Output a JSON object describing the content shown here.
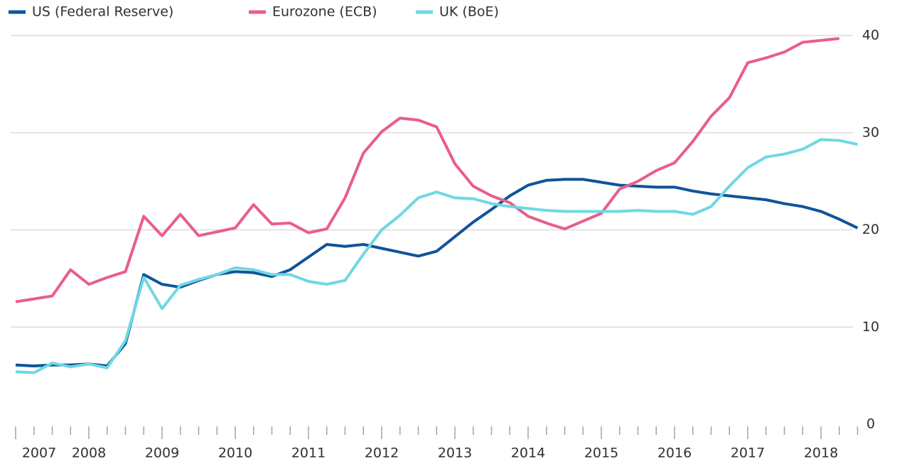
{
  "chart_data": {
    "type": "line",
    "categories": [
      "2007",
      null,
      null,
      null,
      "2008",
      null,
      null,
      null,
      "2009",
      null,
      null,
      null,
      "2010",
      null,
      null,
      null,
      "2011",
      null,
      null,
      null,
      "2012",
      null,
      null,
      null,
      "2013",
      null,
      null,
      null,
      "2014",
      null,
      null,
      null,
      "2015",
      null,
      null,
      null,
      "2016",
      null,
      null,
      null,
      "2017",
      null,
      null,
      null,
      "2018",
      null,
      null
    ],
    "series": [
      {
        "name": "US (Federal Reserve)",
        "color": "#0f5499",
        "values": [
          6.1,
          6.0,
          6.1,
          6.1,
          6.2,
          6.0,
          8.3,
          15.4,
          14.4,
          14.1,
          14.8,
          15.4,
          15.7,
          15.6,
          15.2,
          15.9,
          17.2,
          18.5,
          18.3,
          18.5,
          18.1,
          17.7,
          17.3,
          17.8,
          19.3,
          20.8,
          22.1,
          23.5,
          24.6,
          25.1,
          25.2,
          25.2,
          24.9,
          24.6,
          24.5,
          24.4,
          24.4,
          24.0,
          23.7,
          23.5,
          23.3,
          23.1,
          22.7,
          22.4,
          21.9,
          21.1,
          20.2
        ]
      },
      {
        "name": "Eurozone (ECB)",
        "color": "#e95d8c",
        "values": [
          12.6,
          12.9,
          13.2,
          15.9,
          14.4,
          15.1,
          15.7,
          21.4,
          19.4,
          21.6,
          19.4,
          19.8,
          20.2,
          22.6,
          20.6,
          20.7,
          19.7,
          20.1,
          23.3,
          27.9,
          30.1,
          31.5,
          31.3,
          30.6,
          26.8,
          24.5,
          23.5,
          22.8,
          21.4,
          20.7,
          20.1,
          20.9,
          21.7,
          24.2,
          25.0,
          26.1,
          26.9,
          29.1,
          31.7,
          33.6,
          37.2,
          37.7,
          38.3,
          39.3,
          39.5,
          39.7,
          null
        ]
      },
      {
        "name": "UK (BoE)",
        "color": "#6fd8e4",
        "values": [
          5.4,
          5.3,
          6.3,
          5.9,
          6.2,
          5.8,
          8.6,
          15.1,
          11.9,
          14.3,
          14.9,
          15.4,
          16.1,
          15.9,
          15.4,
          15.4,
          14.7,
          14.4,
          14.8,
          17.5,
          20.0,
          21.5,
          23.3,
          23.9,
          23.3,
          23.2,
          22.7,
          22.4,
          22.2,
          22.0,
          21.9,
          21.9,
          21.9,
          21.9,
          22.0,
          21.9,
          21.9,
          21.6,
          22.4,
          24.5,
          26.4,
          27.5,
          27.8,
          28.3,
          29.3,
          29.2,
          28.8
        ]
      }
    ],
    "ylim": [
      0,
      40
    ],
    "yticks": [
      0,
      10,
      20,
      30,
      40
    ],
    "grid": true,
    "legend": "top-left"
  }
}
